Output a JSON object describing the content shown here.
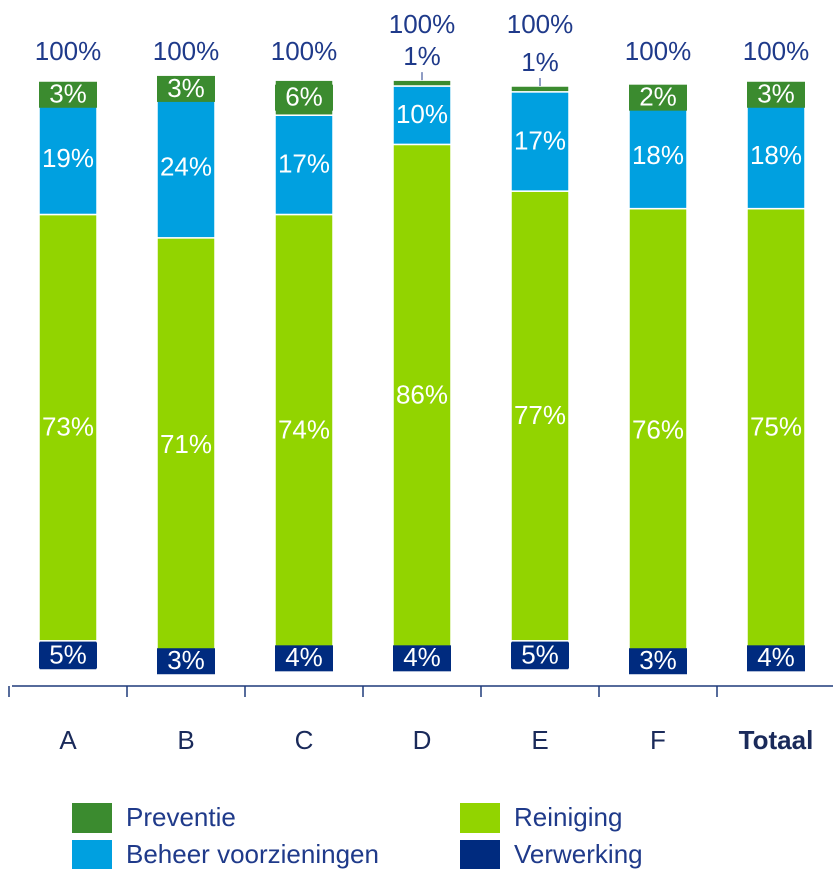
{
  "chart_data": {
    "type": "stacked_bar",
    "categories": [
      "A",
      "B",
      "C",
      "D",
      "E",
      "F",
      "Totaal"
    ],
    "series": [
      {
        "name": "Verwerking",
        "color": "#002b7f",
        "values": [
          5,
          3,
          4,
          4,
          5,
          3,
          4
        ],
        "value_labels": [
          "5%",
          "3%",
          "4%",
          "4%",
          "5%",
          "3%",
          "4%"
        ]
      },
      {
        "name": "Reiniging",
        "color": "#92d400",
        "values": [
          73,
          71,
          74,
          86,
          77,
          76,
          75
        ],
        "value_labels": [
          "73%",
          "71%",
          "74%",
          "86%",
          "77%",
          "76%",
          "75%"
        ]
      },
      {
        "name": "Beheer voorzieningen",
        "color": "#00a0e0",
        "values": [
          19,
          24,
          17,
          10,
          17,
          18,
          18
        ],
        "value_labels": [
          "19%",
          "24%",
          "17%",
          "10%",
          "17%",
          "18%",
          "18%"
        ]
      },
      {
        "name": "Preventie",
        "color": "#3b8b2f",
        "values": [
          3,
          3,
          6,
          1,
          1,
          2,
          3
        ],
        "value_labels": [
          "3%",
          "3%",
          "6%",
          "1%",
          "1%",
          "2%",
          "3%"
        ]
      }
    ],
    "totals": [
      100,
      100,
      100,
      100,
      100,
      100,
      100
    ],
    "total_labels": [
      "100%",
      "100%",
      "100%",
      "100%",
      "100%",
      "100%",
      "100%"
    ],
    "ylim": [
      0,
      100
    ]
  }
}
